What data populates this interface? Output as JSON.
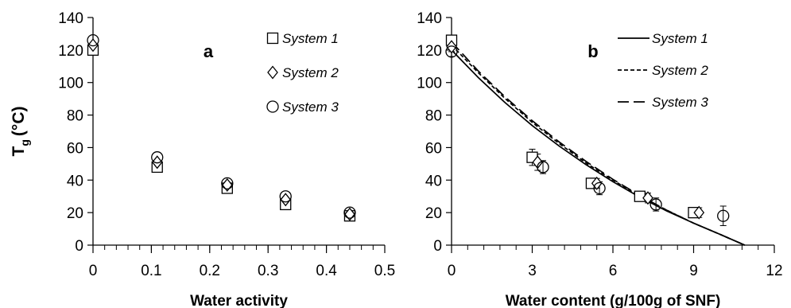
{
  "chart_data": [
    {
      "panel": "a",
      "type": "scatter",
      "xlabel": "Water activity",
      "ylabel": "T",
      "ylabel_sub": "g",
      "ylabel_unit": "(°C)",
      "xlim": [
        0,
        0.5
      ],
      "ylim": [
        0,
        140
      ],
      "xticks": [
        "0",
        "0.1",
        "0.2",
        "0.3",
        "0.4",
        "0.5"
      ],
      "yticks": [
        "0",
        "20",
        "40",
        "60",
        "80",
        "100",
        "120",
        "140"
      ],
      "xminor_step": 0.02,
      "grid": false,
      "legend_placement": "top-right",
      "series": [
        {
          "name": "System 1",
          "marker": "square",
          "x": [
            0,
            0.11,
            0.23,
            0.33,
            0.44
          ],
          "y": [
            120,
            48,
            35,
            25,
            18
          ]
        },
        {
          "name": "System 2",
          "marker": "diamond",
          "x": [
            0,
            0.11,
            0.23,
            0.33,
            0.44
          ],
          "y": [
            123,
            51,
            37,
            28,
            19
          ]
        },
        {
          "name": "System 3",
          "marker": "circle",
          "x": [
            0,
            0.11,
            0.23,
            0.33,
            0.44
          ],
          "y": [
            126,
            54,
            38,
            30,
            20
          ]
        }
      ]
    },
    {
      "panel": "b",
      "type": "scatter",
      "xlabel": "Water content (g/100g of SNF)",
      "ylabel": "",
      "xlim": [
        0,
        12
      ],
      "ylim": [
        0,
        140
      ],
      "xticks": [
        "0",
        "3",
        "6",
        "9",
        "12"
      ],
      "yticks": [
        "0",
        "20",
        "40",
        "60",
        "80",
        "100",
        "120",
        "140"
      ],
      "xminor_step": 0.6,
      "grid": false,
      "legend_placement": "top-right",
      "series": [
        {
          "name": "System 1",
          "marker": "square",
          "x": [
            0,
            3.0,
            5.2,
            7.0,
            9.0
          ],
          "y": [
            126,
            54,
            38,
            30,
            20
          ],
          "yerr": [
            3,
            5,
            3,
            2,
            3
          ]
        },
        {
          "name": "System 2",
          "marker": "diamond",
          "x": [
            0,
            3.2,
            5.4,
            7.3,
            9.2
          ],
          "y": [
            122,
            51,
            38,
            29,
            20
          ],
          "yerr": [
            3,
            5,
            3,
            3,
            3
          ]
        },
        {
          "name": "System 3",
          "marker": "circle",
          "x": [
            0,
            3.4,
            5.5,
            7.6,
            10.1
          ],
          "y": [
            119,
            48,
            35,
            25,
            18
          ],
          "yerr": [
            3,
            4,
            4,
            4,
            6
          ]
        }
      ],
      "curves": [
        {
          "name": "System 1",
          "dash": "solid",
          "x": [
            0,
            1,
            2,
            3,
            4,
            5,
            6,
            7,
            8,
            9,
            10,
            10.9
          ],
          "y": [
            120,
            103,
            87.5,
            73.5,
            61,
            49.5,
            39,
            29.5,
            21,
            13.5,
            6.5,
            0
          ]
        },
        {
          "name": "System 2",
          "dash": "short-dash",
          "x": [
            0,
            1,
            2,
            3,
            4,
            5,
            6,
            7,
            8,
            9,
            10,
            10.9
          ],
          "y": [
            123,
            106,
            90,
            75.5,
            62.5,
            50.5,
            40,
            30,
            21.5,
            13.5,
            6.5,
            0
          ]
        },
        {
          "name": "System 3",
          "dash": "long-dash",
          "x": [
            0,
            1,
            2,
            3,
            4,
            5,
            6,
            7,
            8,
            9,
            10,
            10.9
          ],
          "y": [
            125,
            107,
            91,
            76.5,
            63.5,
            51.5,
            40.5,
            30.5,
            21.5,
            13.5,
            6.5,
            0
          ]
        }
      ]
    }
  ]
}
